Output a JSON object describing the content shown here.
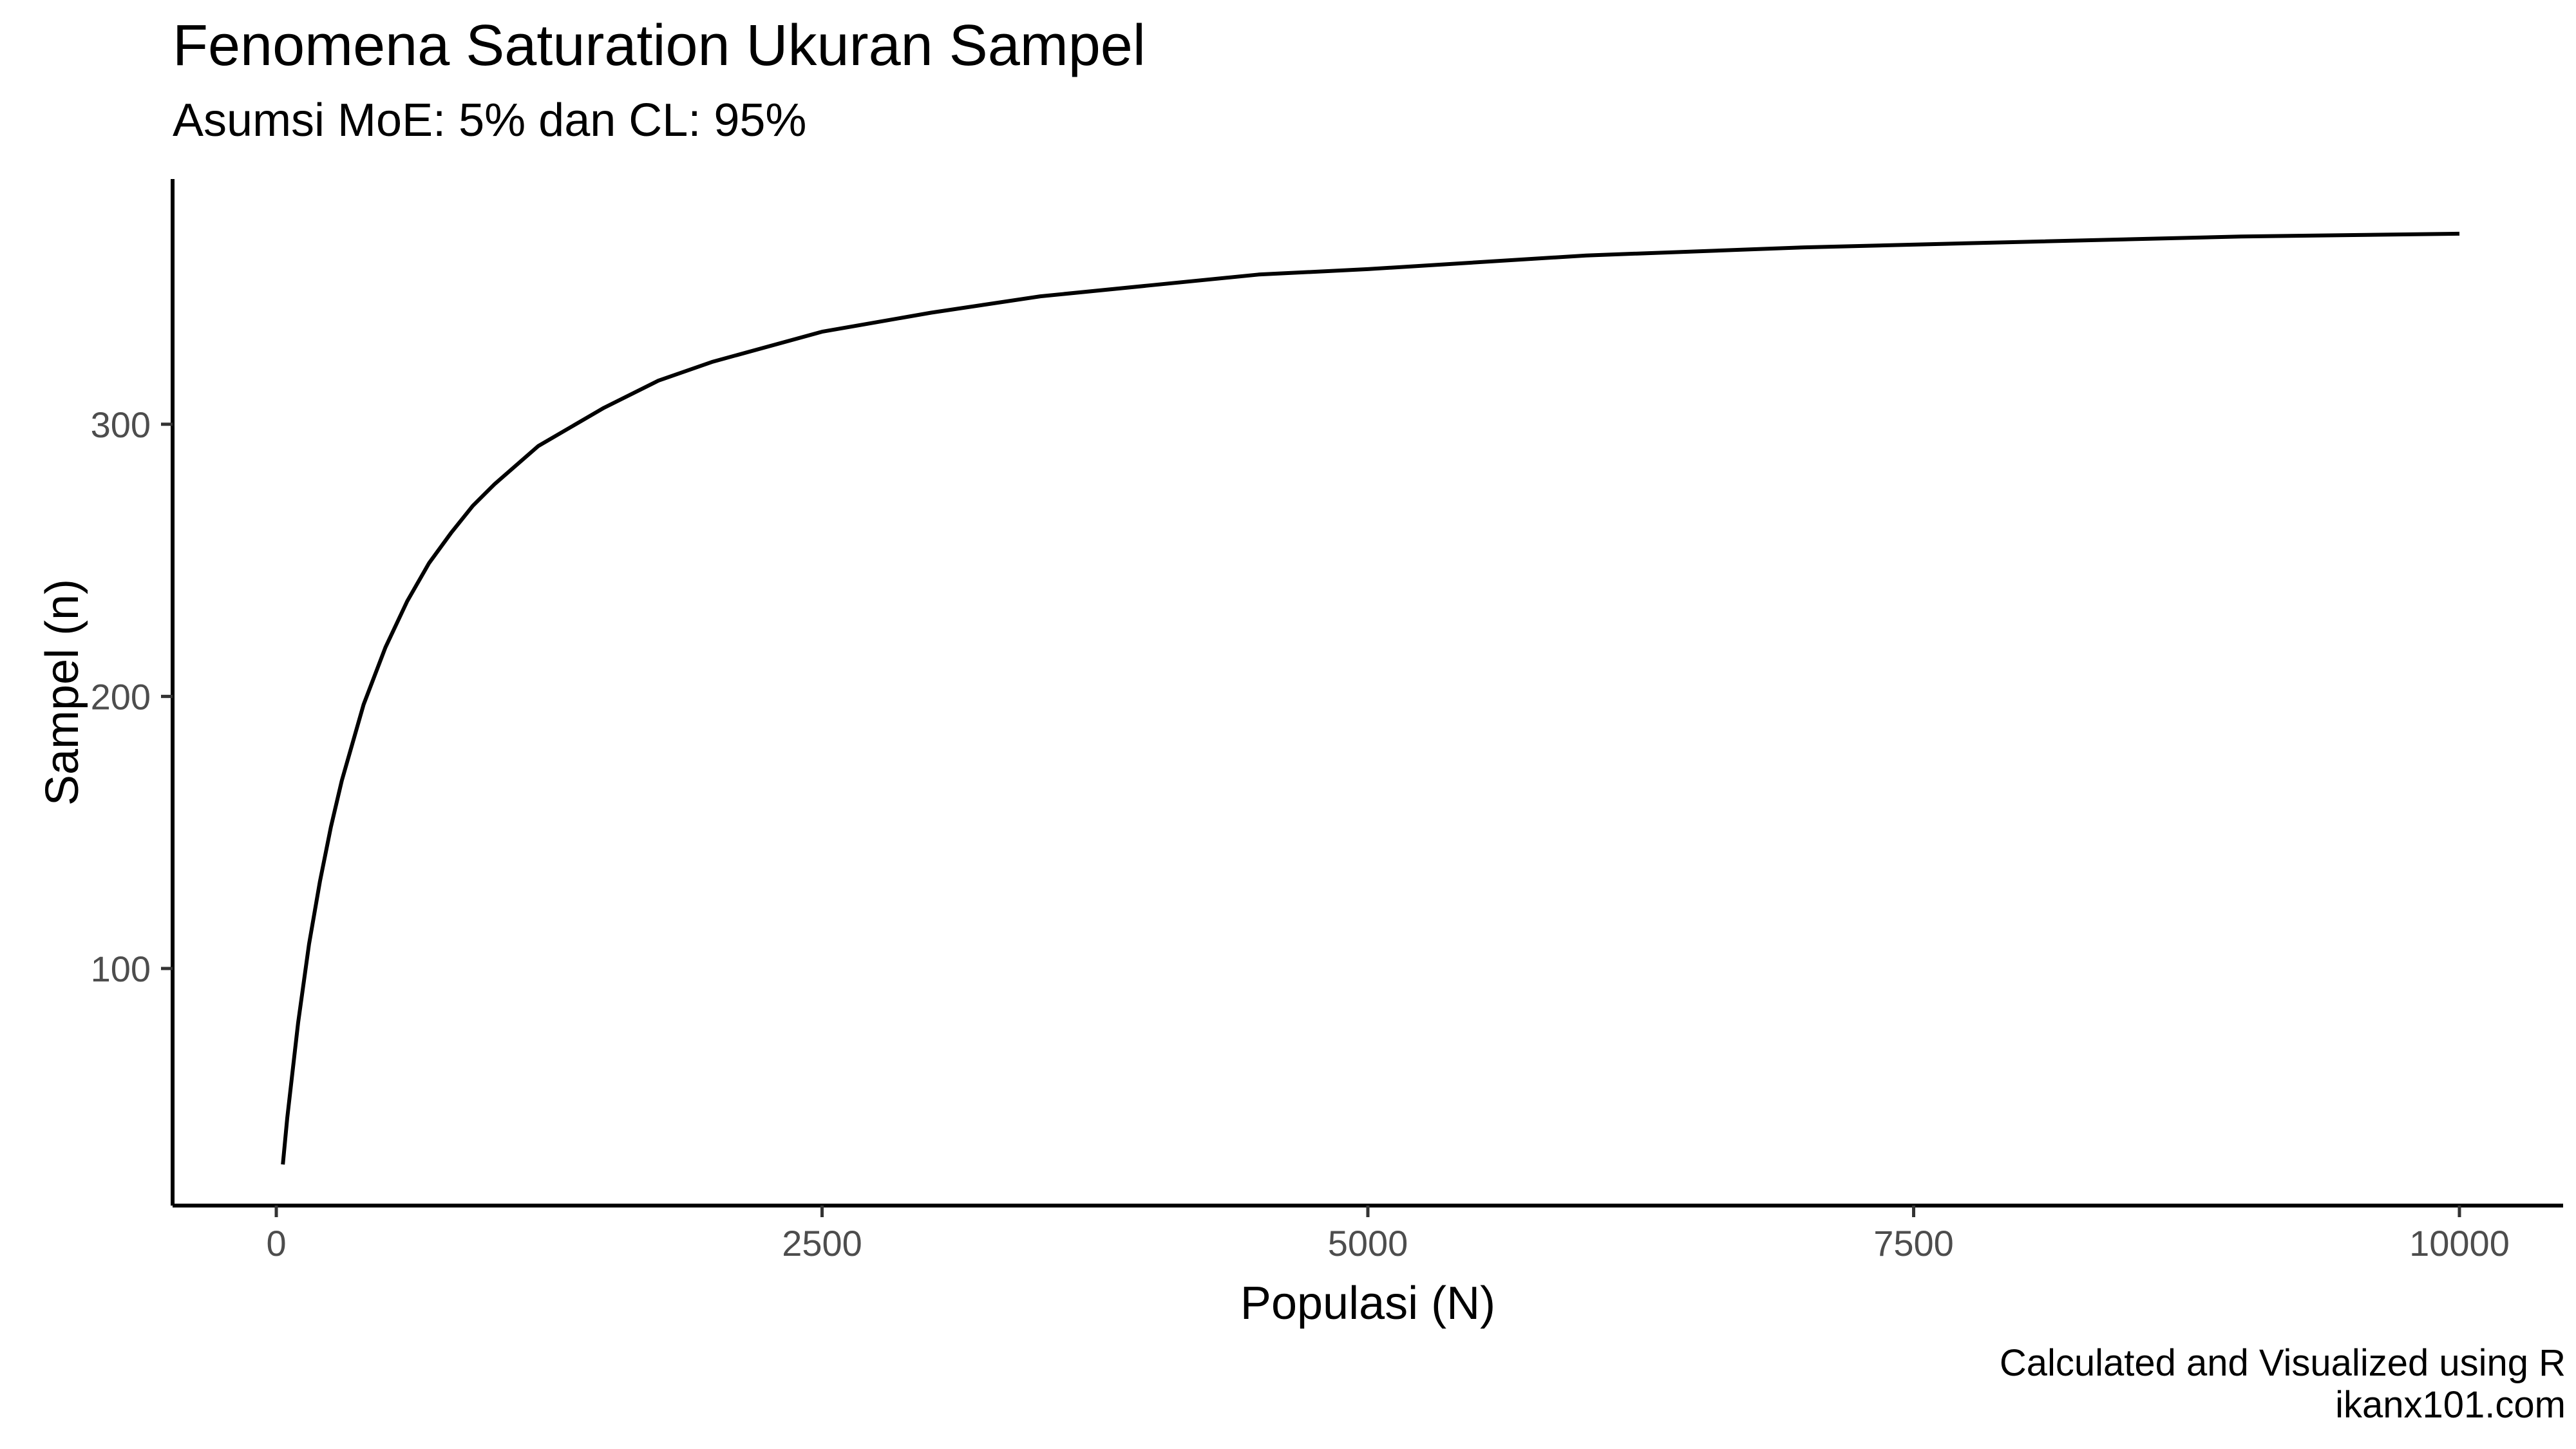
{
  "chart_data": {
    "type": "line",
    "title": "Fenomena Saturation Ukuran Sampel",
    "subtitle": "Asumsi MoE: 5% dan CL: 95%",
    "xlabel": "Populasi (N)",
    "ylabel": "Sampel (n)",
    "xlim": [
      -475,
      10475
    ],
    "ylim": [
      12.9,
      390.1
    ],
    "x_ticks": [
      0,
      2500,
      5000,
      7500,
      10000
    ],
    "x_tick_labels": [
      "0",
      "2500",
      "5000",
      "7500",
      "10000"
    ],
    "y_ticks": [
      100,
      200,
      300
    ],
    "y_tick_labels": [
      "100",
      "200",
      "300"
    ],
    "grid": false,
    "legend": "none",
    "line_color": "#000000",
    "series": [
      {
        "x": [
          30,
          50,
          100,
          150,
          200,
          250,
          300,
          400,
          500,
          600,
          700,
          800,
          900,
          1000,
          1200,
          1500,
          1750,
          2000,
          2500,
          3000,
          3500,
          4000,
          4500,
          5000,
          6000,
          7000,
          8000,
          9000,
          10000
        ],
        "y": [
          28,
          45,
          80,
          109,
          132,
          152,
          169,
          197,
          218,
          235,
          249,
          260,
          270,
          278,
          292,
          306,
          316,
          323,
          334,
          341,
          347,
          351,
          355,
          357,
          362,
          365,
          367,
          369,
          370
        ]
      }
    ],
    "caption": [
      "Calculated and Visualized using R",
      "ikanx101.com"
    ]
  }
}
